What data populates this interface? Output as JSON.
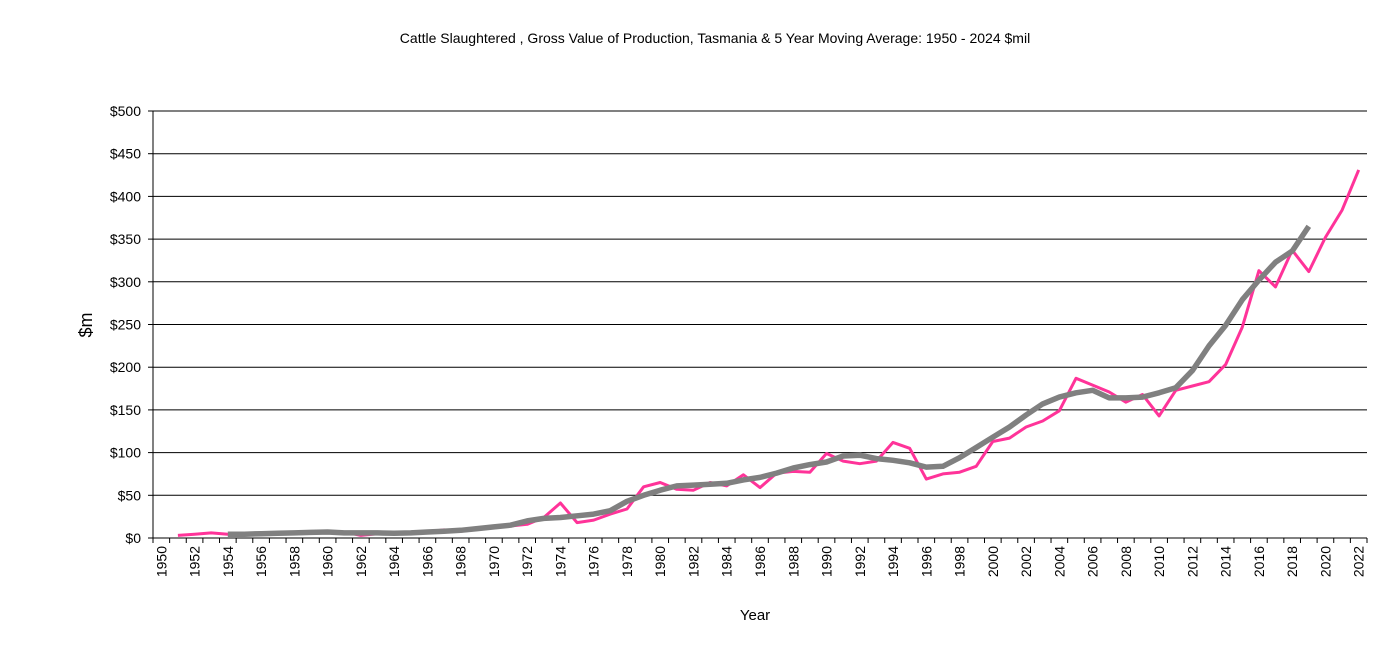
{
  "chart_data": {
    "type": "line",
    "title": "Cattle Slaughtered , Gross Value of Production,  Tasmania & 5 Year Moving Average: 1950 - 2024 $mil",
    "xlabel": "Year",
    "ylabel": "$m",
    "ylim": [
      0,
      500
    ],
    "ytick_step": 50,
    "ytick_labels": [
      "$0",
      "$50",
      "$100",
      "$150",
      "$200",
      "$250",
      "$300",
      "$350",
      "$400",
      "$450",
      "$500"
    ],
    "grid": true,
    "x_start": 1950,
    "x_end": 2022,
    "xtick_labels": [
      "1950",
      "1952",
      "1954",
      "1956",
      "1958",
      "1960",
      "1962",
      "1964",
      "1966",
      "1968",
      "1970",
      "1972",
      "1974",
      "1976",
      "1978",
      "1980",
      "1982",
      "1984",
      "1986",
      "1988",
      "1990",
      "1992",
      "1994",
      "1996",
      "1998",
      "2000",
      "2002",
      "2004",
      "2006",
      "2008",
      "2010",
      "2012",
      "2014",
      "2016",
      "2018",
      "2020",
      "2022"
    ],
    "series": [
      {
        "name": "Gross Value of Production",
        "color": "#ff3399",
        "start_year": 1951,
        "values": [
          3,
          4.5,
          6,
          4.5,
          4.5,
          5,
          6,
          6,
          7.5,
          7.5,
          7,
          3,
          5,
          5,
          6,
          7,
          9.5,
          8,
          10,
          14,
          14,
          16,
          24,
          41,
          18,
          21,
          28,
          34,
          60,
          65,
          57,
          56,
          65,
          61,
          74,
          59,
          76,
          78,
          77,
          99,
          90,
          87,
          90,
          112,
          105,
          69,
          75,
          77,
          84,
          113,
          117,
          130,
          137,
          149,
          187,
          179,
          171,
          159,
          168,
          143,
          173,
          178,
          183,
          203,
          247,
          313,
          294,
          337,
          312,
          352,
          384,
          431
        ]
      },
      {
        "name": "5 Year Moving Average",
        "color": "#808080",
        "start_year": 1954,
        "values": [
          4.5,
          4.5,
          5,
          5.5,
          6,
          6.5,
          7,
          6,
          6,
          6,
          5.5,
          6,
          7,
          8,
          9,
          11,
          13,
          15,
          20,
          23,
          24,
          26,
          28,
          32,
          43,
          50,
          56,
          61,
          62,
          63,
          64,
          68,
          71,
          76,
          82,
          86,
          89,
          96,
          97,
          93,
          91,
          88,
          83,
          84,
          94,
          106,
          118,
          130,
          144,
          157,
          165,
          170,
          173,
          164,
          164,
          165,
          170,
          176,
          196,
          225,
          249,
          279,
          302,
          323,
          336,
          365
        ]
      }
    ]
  }
}
